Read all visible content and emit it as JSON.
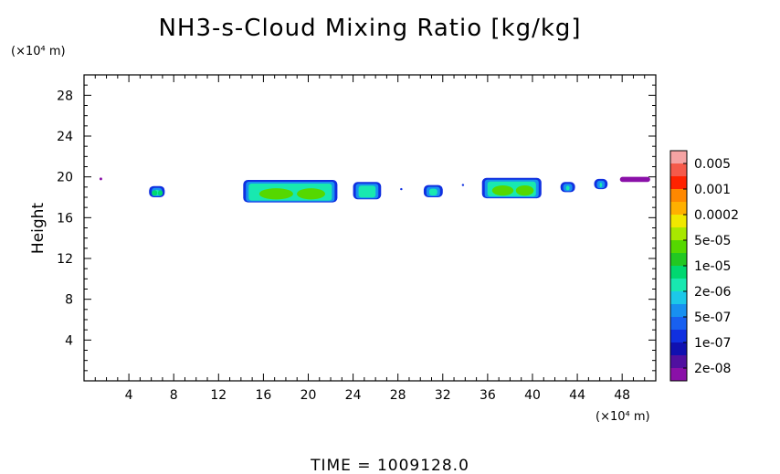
{
  "chart_data": {
    "type": "heatmap",
    "title": "NH3-s-Cloud Mixing Ratio [kg/kg]",
    "xlabel": "",
    "ylabel": "Height",
    "x_unit": "(×10⁴ m)",
    "y_unit": "(×10⁴ m)",
    "xlim": [
      0,
      51
    ],
    "ylim": [
      0,
      30
    ],
    "x_ticks": [
      4,
      8,
      12,
      16,
      20,
      24,
      28,
      32,
      36,
      40,
      44,
      48
    ],
    "y_ticks": [
      4,
      8,
      12,
      16,
      20,
      24,
      28
    ],
    "footer": "TIME  =  1009128.0",
    "colorbar": {
      "labels": [
        "0.005",
        "0.001",
        "0.0002",
        "5e-05",
        "1e-05",
        "2e-06",
        "5e-07",
        "1e-07",
        "2e-08"
      ],
      "colors_top_to_bottom": [
        "#f5a3a3",
        "#f55a4a",
        "#ff2200",
        "#ff8800",
        "#ffb000",
        "#f0e800",
        "#a8e800",
        "#55d800",
        "#22c822",
        "#00d870",
        "#18e8b0",
        "#1cc8e8",
        "#1890f0",
        "#1860f0",
        "#1030e0",
        "#1010b0",
        "#5010a0",
        "#8a10a8"
      ]
    },
    "cloud_regions": [
      {
        "x": [
          5.8,
          7.2
        ],
        "y": [
          18.0,
          19.1
        ],
        "max_level": "5e-06"
      },
      {
        "x": [
          14.2,
          22.6
        ],
        "y": [
          17.5,
          19.7
        ],
        "max_level": "1e-05"
      },
      {
        "x": [
          24.0,
          26.5
        ],
        "y": [
          17.8,
          19.5
        ],
        "max_level": "2e-06"
      },
      {
        "x": [
          30.3,
          32.0
        ],
        "y": [
          18.0,
          19.2
        ],
        "max_level": "2e-06"
      },
      {
        "x": [
          35.5,
          40.8
        ],
        "y": [
          17.9,
          19.9
        ],
        "max_level": "1e-05"
      },
      {
        "x": [
          42.5,
          43.8
        ],
        "y": [
          18.5,
          19.5
        ],
        "max_level": "5e-07"
      },
      {
        "x": [
          45.5,
          46.7
        ],
        "y": [
          18.8,
          19.8
        ],
        "max_level": "1e-07"
      },
      {
        "x": [
          47.8,
          50.5
        ],
        "y": [
          19.5,
          20.0
        ],
        "max_level": "2e-08"
      }
    ]
  }
}
